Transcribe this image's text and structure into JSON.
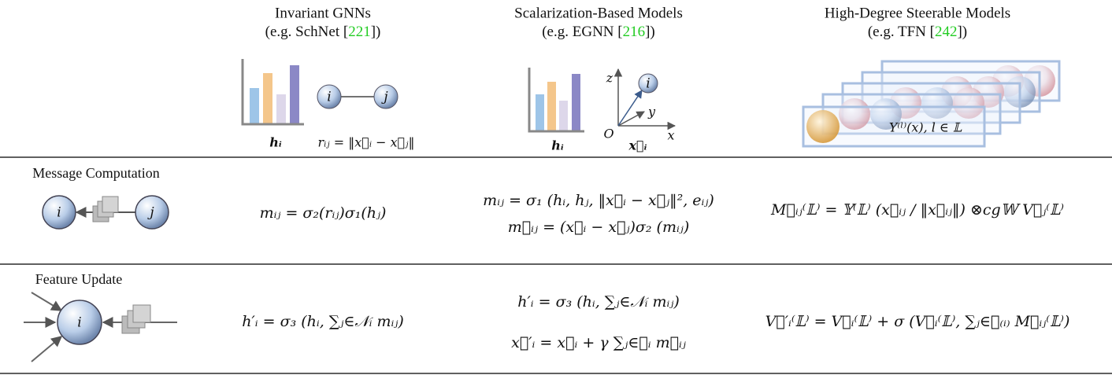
{
  "columns": [
    {
      "title": "Invariant GNNs",
      "example_prefix": "(e.g. SchNet [",
      "cite": "221",
      "example_suffix": "])",
      "feature_label": "hᵢ",
      "node_labels": [
        "i",
        "j"
      ],
      "geometry_label": "rᵢⱼ = ‖x⃗ᵢ − x⃗ⱼ‖"
    },
    {
      "title": "Scalarization-Based Models",
      "example_prefix": "(e.g. EGNN [",
      "cite": "216",
      "example_suffix": "])",
      "feature_label": "hᵢ",
      "node_labels": [
        "i"
      ],
      "axis_labels": [
        "z",
        "y",
        "x",
        "O"
      ],
      "geometry_label": "x⃗ᵢ"
    },
    {
      "title": "High-Degree Steerable Models",
      "example_prefix": "(e.g. TFN [",
      "cite": "242",
      "example_suffix": "])",
      "geometry_label": "Y⁽ˡ⁾(x),  l ∈ 𝕃"
    }
  ],
  "rows": [
    {
      "label": "Message Computation",
      "node_labels": [
        "i",
        "j"
      ],
      "cells": [
        [
          "mᵢⱼ = σ₂(rᵢⱼ)σ₁(hⱼ)"
        ],
        [
          "mᵢⱼ = σ₁ (hᵢ, hⱼ, ‖x⃗ᵢ − x⃗ⱼ‖², eᵢⱼ)",
          "m⃗ᵢⱼ = (x⃗ᵢ − x⃗ⱼ)σ₂ (mᵢⱼ)"
        ],
        [
          "M⃗ᵢⱼ⁽𝕃⁾ = 𝕐⁽𝕃⁾ (x⃗ᵢⱼ / ‖x⃗ᵢⱼ‖) ⊗cg𝕎 V⃗ⱼ⁽𝕃⁾"
        ]
      ]
    },
    {
      "label": "Feature Update",
      "node_labels": [
        "i"
      ],
      "cells": [
        [
          "h′ᵢ = σ₃ (hᵢ, ∑ⱼ∈𝒩ᵢ mᵢⱼ)"
        ],
        [
          "h′ᵢ = σ₃ (hᵢ, ∑ⱼ∈𝒩ᵢ mᵢⱼ)",
          "x⃗′ᵢ = x⃗ᵢ + γ ∑ⱼ∈𝒩ᵢ m⃗ᵢⱼ"
        ],
        [
          "V⃗′ᵢ⁽𝕃⁾ = V⃗ᵢ⁽𝕃⁾ + σ (V⃗ᵢ⁽𝕃⁾, ∑ⱼ∈𝒩₍ᵢ₎ M⃗ᵢⱼ⁽𝕃⁾)"
        ]
      ]
    }
  ]
}
